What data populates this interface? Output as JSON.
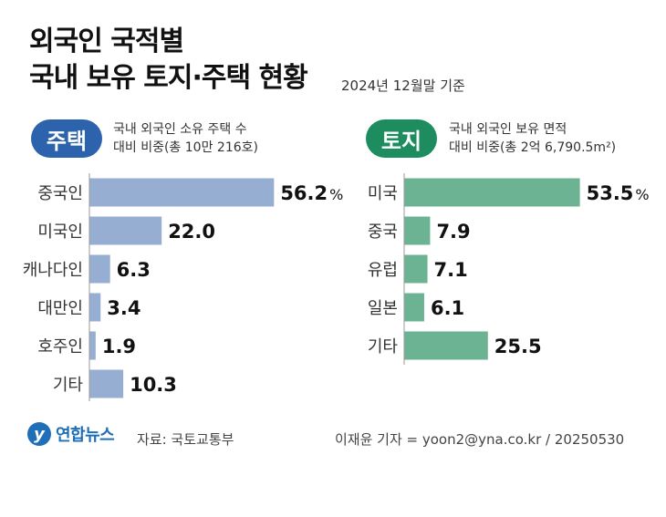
{
  "header": {
    "title_line1": "외국인 국적별",
    "title_line2": "국내 보유 토지·주택 현황",
    "as_of": "2024년 12월말 기준"
  },
  "colors": {
    "housing_bar": "#97aed3",
    "housing_pill": "#2d63ac",
    "land_bar": "#6cb393",
    "land_pill": "#1d8c5e",
    "axis": "#999999"
  },
  "chart_data": [
    {
      "type": "bar",
      "orientation": "horizontal",
      "badge": "주택",
      "title": "국내 외국인 소유 주택 수",
      "subtitle": "대비 비중(총 10만 216호)",
      "categories": [
        "중국인",
        "미국인",
        "캐나다인",
        "대만인",
        "호주인",
        "기타"
      ],
      "values": [
        56.2,
        22.0,
        6.3,
        3.4,
        1.9,
        10.3
      ],
      "value_labels": [
        "56.2",
        "22.0",
        "6.3",
        "3.4",
        "1.9",
        "10.3"
      ],
      "unit": "%"
    },
    {
      "type": "bar",
      "orientation": "horizontal",
      "badge": "토지",
      "title": "국내 외국인 보유 면적",
      "subtitle": "대비 비중(총 2억 6,790.5m²)",
      "categories": [
        "미국",
        "중국",
        "유럽",
        "일본",
        "기타"
      ],
      "values": [
        53.5,
        7.9,
        7.1,
        6.1,
        25.5
      ],
      "value_labels": [
        "53.5",
        "7.9",
        "7.1",
        "6.1",
        "25.5"
      ],
      "unit": "%"
    }
  ],
  "footer": {
    "logo_text": "연합뉴스",
    "source": "자료: 국토교통부",
    "credit": "이재윤 기자 = yoon2@yna.co.kr / 20250530"
  }
}
